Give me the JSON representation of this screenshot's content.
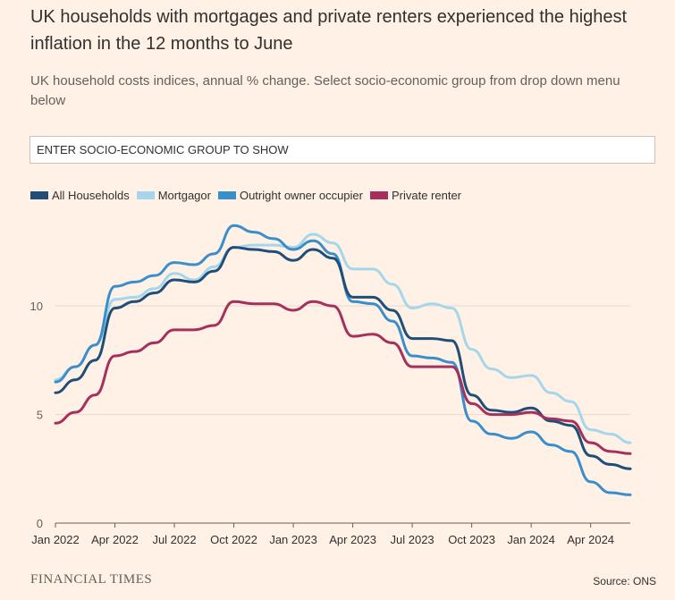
{
  "title": "UK households with mortgages and private renters experienced the highest inflation in the 12 months to June",
  "subtitle": "UK household costs indices, annual % change. Select socio-economic group from drop down menu below",
  "dropdown": {
    "placeholder": "ENTER SOCIO-ECONOMIC GROUP TO SHOW"
  },
  "legend": [
    {
      "name": "All Households",
      "color": "#1F4E79"
    },
    {
      "name": "Mortgagor",
      "color": "#A6D6EB"
    },
    {
      "name": "Outright owner occupier",
      "color": "#3A8FCB"
    },
    {
      "name": "Private renter",
      "color": "#A6305C"
    }
  ],
  "footer": {
    "brand": "FINANCIAL TIMES",
    "source": "Source: ONS"
  },
  "chart_data": {
    "type": "line",
    "title": "UK households with mortgages and private renters experienced the highest inflation in the 12 months to June",
    "x": [
      "2022-01",
      "2022-02",
      "2022-03",
      "2022-04",
      "2022-05",
      "2022-06",
      "2022-07",
      "2022-08",
      "2022-09",
      "2022-10",
      "2022-11",
      "2022-12",
      "2023-01",
      "2023-02",
      "2023-03",
      "2023-04",
      "2023-05",
      "2023-06",
      "2023-07",
      "2023-08",
      "2023-09",
      "2023-10",
      "2023-11",
      "2023-12",
      "2024-01",
      "2024-02",
      "2024-03",
      "2024-04",
      "2024-05",
      "2024-06"
    ],
    "x_ticks": [
      "Jan 2022",
      "Apr 2022",
      "Jul 2022",
      "Oct 2022",
      "Jan 2023",
      "Apr 2023",
      "Jul 2023",
      "Oct 2023",
      "Jan 2024",
      "Apr 2024"
    ],
    "y_ticks": [
      0,
      5,
      10
    ],
    "ylim": [
      0,
      14
    ],
    "grid": true,
    "legend_position": "top-left",
    "series": [
      {
        "name": "All Households",
        "color": "#1F4E79",
        "values": [
          6.0,
          6.6,
          7.5,
          9.9,
          10.2,
          10.6,
          11.2,
          11.1,
          11.6,
          12.7,
          12.6,
          12.5,
          12.1,
          12.6,
          12.2,
          10.4,
          10.4,
          9.8,
          8.5,
          8.5,
          8.4,
          5.9,
          5.2,
          5.1,
          5.3,
          4.7,
          4.5,
          3.1,
          2.7,
          2.5
        ]
      },
      {
        "name": "Mortgagor",
        "color": "#A6D6EB",
        "values": [
          6.6,
          7.2,
          8.2,
          10.3,
          10.4,
          10.8,
          11.5,
          11.2,
          11.8,
          12.7,
          12.8,
          12.8,
          12.7,
          13.3,
          12.9,
          11.7,
          11.7,
          11.0,
          9.9,
          10.1,
          9.9,
          8.0,
          7.1,
          6.7,
          6.8,
          6.0,
          5.6,
          4.3,
          4.1,
          3.7
        ]
      },
      {
        "name": "Outright owner occupier",
        "color": "#3A8FCB",
        "values": [
          6.5,
          7.2,
          8.2,
          10.9,
          11.1,
          11.4,
          12.0,
          11.9,
          12.4,
          13.7,
          13.4,
          13.1,
          12.6,
          13.0,
          12.4,
          10.2,
          10.1,
          9.3,
          7.7,
          7.6,
          7.4,
          4.7,
          4.1,
          3.9,
          4.2,
          3.6,
          3.3,
          1.9,
          1.4,
          1.3
        ]
      },
      {
        "name": "Private renter",
        "color": "#A6305C",
        "values": [
          4.6,
          5.1,
          5.9,
          7.7,
          7.9,
          8.3,
          8.9,
          8.9,
          9.1,
          10.2,
          10.1,
          10.1,
          9.8,
          10.2,
          10.0,
          8.6,
          8.7,
          8.3,
          7.2,
          7.2,
          7.2,
          5.5,
          5.0,
          5.0,
          5.1,
          4.8,
          4.7,
          3.7,
          3.3,
          3.2
        ]
      }
    ]
  }
}
